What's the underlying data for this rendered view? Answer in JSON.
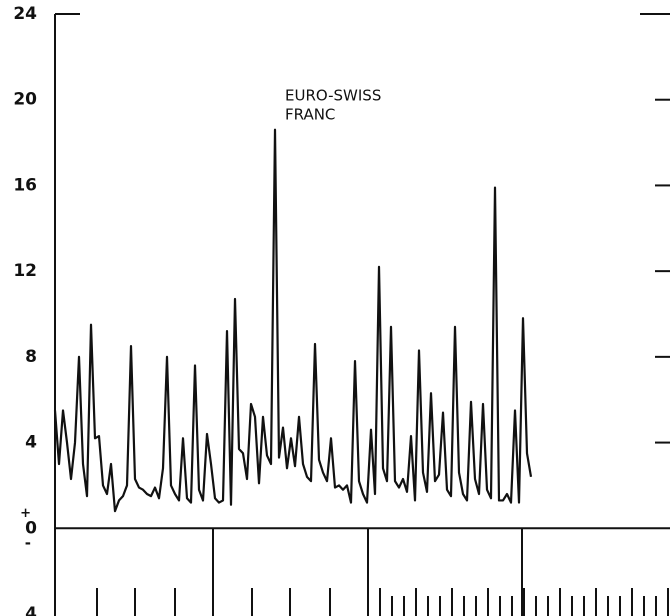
{
  "chart_data": {
    "type": "line",
    "annotation": [
      "EURO-SWISS",
      "FRANC"
    ],
    "zero_signs": [
      "+",
      "-"
    ],
    "color": "#111111",
    "ylim": [
      -4,
      24
    ],
    "yticks": [
      {
        "value": -4,
        "label": "4"
      },
      0,
      4,
      8,
      12,
      16,
      20,
      24
    ],
    "values": [
      5.5,
      3,
      5.5,
      4,
      2.3,
      4,
      8,
      3,
      1.5,
      9.5,
      4.2,
      4.3,
      2,
      1.6,
      3,
      0.8,
      1.3,
      1.5,
      2,
      8.5,
      2.3,
      1.9,
      1.8,
      1.6,
      1.5,
      1.9,
      1.4,
      2.8,
      8,
      2,
      1.6,
      1.3,
      4.2,
      1.4,
      1.2,
      7.6,
      1.8,
      1.3,
      4.4,
      3,
      1.4,
      1.2,
      1.3,
      9.2,
      1.1,
      10.7,
      3.7,
      3.5,
      2.3,
      5.8,
      5.2,
      2.1,
      5.2,
      3.4,
      3,
      18.6,
      3.3,
      4.7,
      2.8,
      4.2,
      2.9,
      5.2,
      3,
      2.4,
      2.2,
      8.6,
      3.2,
      2.6,
      2.2,
      4.2,
      1.9,
      2,
      1.8,
      2,
      1.2,
      7.8,
      2.2,
      1.6,
      1.2,
      4.6,
      1.6,
      12.2,
      2.8,
      2.2,
      9.4,
      2.2,
      1.9,
      2.3,
      1.7,
      4.3,
      1.3,
      8.3,
      2.6,
      1.7,
      6.3,
      2.2,
      2.5,
      5.4,
      1.8,
      1.5,
      9.4,
      2.6,
      1.6,
      1.3,
      5.9,
      2.3,
      1.6,
      5.8,
      1.8,
      1.4,
      15.9,
      1.3,
      1.3,
      1.6,
      1.2,
      5.5,
      1.2,
      9.8,
      3.5,
      2.4
    ]
  }
}
